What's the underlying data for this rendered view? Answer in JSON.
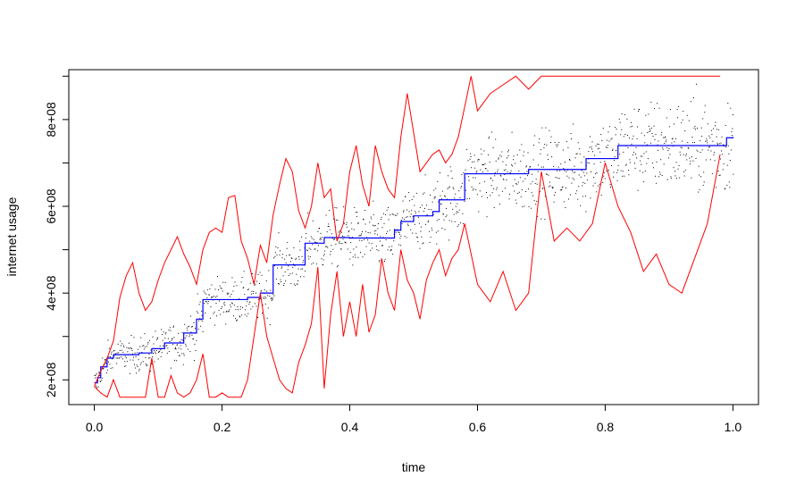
{
  "chart_data": {
    "type": "line",
    "title": "",
    "xlabel": "time",
    "ylabel": "internet usage",
    "xlim": [
      -0.04,
      1.04
    ],
    "ylim": [
      143000000,
      915000000
    ],
    "xticks": [
      0.0,
      0.2,
      0.4,
      0.6,
      0.8,
      1.0
    ],
    "xtick_labels": [
      "0.0",
      "0.2",
      "0.4",
      "0.6",
      "0.8",
      "1.0"
    ],
    "yticks": [
      200000000,
      300000000,
      400000000,
      500000000,
      600000000,
      700000000,
      800000000,
      900000000
    ],
    "ytick_labels": [
      "2e+08",
      "",
      "4e+08",
      "",
      "6e+08",
      "",
      "8e+08",
      ""
    ],
    "grid": false,
    "legend": "none",
    "colors": {
      "step": "#0000ff",
      "band": "#ff0000",
      "points": "#000000"
    },
    "series": [
      {
        "kind": "step",
        "x": [
          0.0,
          0.005,
          0.01,
          0.02,
          0.03,
          0.05,
          0.07,
          0.09,
          0.11,
          0.14,
          0.16,
          0.17,
          0.24,
          0.26,
          0.28,
          0.33,
          0.36,
          0.4,
          0.47,
          0.48,
          0.5,
          0.53,
          0.54,
          0.58,
          0.68,
          0.77,
          0.82,
          0.98,
          0.99,
          1.0
        ],
        "y": [
          193000000,
          205000000,
          230000000,
          250000000,
          258000000,
          258000000,
          262000000,
          272000000,
          285000000,
          308000000,
          340000000,
          385000000,
          390000000,
          400000000,
          465000000,
          515000000,
          528000000,
          527000000,
          545000000,
          565000000,
          578000000,
          588000000,
          615000000,
          675000000,
          685000000,
          710000000,
          740000000,
          740000000,
          758000000,
          760000000
        ]
      },
      {
        "kind": "band",
        "x": [
          0.0,
          0.01,
          0.02,
          0.03,
          0.04,
          0.05,
          0.06,
          0.07,
          0.08,
          0.09,
          0.1,
          0.11,
          0.12,
          0.13,
          0.14,
          0.15,
          0.16,
          0.17,
          0.18,
          0.19,
          0.2,
          0.21,
          0.22,
          0.23,
          0.24,
          0.25,
          0.26,
          0.27,
          0.28,
          0.29,
          0.3,
          0.31,
          0.32,
          0.33,
          0.34,
          0.35,
          0.36,
          0.37,
          0.38,
          0.39,
          0.4,
          0.41,
          0.42,
          0.43,
          0.44,
          0.45,
          0.46,
          0.47,
          0.48,
          0.49,
          0.5,
          0.51,
          0.52,
          0.53,
          0.54,
          0.55,
          0.56,
          0.57,
          0.58,
          0.59,
          0.6,
          0.62,
          0.64,
          0.66,
          0.68,
          0.7,
          0.72,
          0.74,
          0.76,
          0.78,
          0.8,
          0.82,
          0.84,
          0.86,
          0.9,
          0.95,
          0.98
        ],
        "y": [
          185000000,
          220000000,
          250000000,
          290000000,
          390000000,
          440000000,
          470000000,
          400000000,
          360000000,
          380000000,
          430000000,
          470000000,
          500000000,
          530000000,
          490000000,
          460000000,
          420000000,
          500000000,
          540000000,
          550000000,
          540000000,
          620000000,
          625000000,
          520000000,
          480000000,
          420000000,
          510000000,
          470000000,
          580000000,
          650000000,
          710000000,
          680000000,
          590000000,
          550000000,
          600000000,
          700000000,
          620000000,
          640000000,
          520000000,
          560000000,
          680000000,
          740000000,
          650000000,
          600000000,
          740000000,
          680000000,
          640000000,
          620000000,
          760000000,
          860000000,
          770000000,
          680000000,
          700000000,
          720000000,
          730000000,
          700000000,
          720000000,
          760000000,
          830000000,
          900000000,
          820000000,
          860000000,
          880000000,
          900000000,
          870000000,
          900000000,
          900000000,
          900000000,
          900000000,
          900000000,
          900000000,
          900000000,
          900000000,
          900000000,
          900000000,
          900000000,
          900000000
        ]
      },
      {
        "kind": "band",
        "x": [
          0.0,
          0.01,
          0.02,
          0.03,
          0.04,
          0.06,
          0.08,
          0.09,
          0.1,
          0.11,
          0.12,
          0.13,
          0.14,
          0.15,
          0.16,
          0.17,
          0.18,
          0.19,
          0.2,
          0.21,
          0.22,
          0.23,
          0.24,
          0.25,
          0.26,
          0.27,
          0.28,
          0.29,
          0.3,
          0.31,
          0.32,
          0.33,
          0.34,
          0.35,
          0.36,
          0.37,
          0.38,
          0.39,
          0.4,
          0.41,
          0.42,
          0.43,
          0.44,
          0.45,
          0.46,
          0.47,
          0.48,
          0.49,
          0.5,
          0.51,
          0.52,
          0.53,
          0.54,
          0.55,
          0.56,
          0.57,
          0.58,
          0.6,
          0.62,
          0.64,
          0.66,
          0.68,
          0.7,
          0.72,
          0.74,
          0.76,
          0.78,
          0.8,
          0.82,
          0.84,
          0.86,
          0.88,
          0.9,
          0.92,
          0.94,
          0.96,
          0.98
        ],
        "y": [
          185000000,
          170000000,
          160000000,
          200000000,
          160000000,
          160000000,
          160000000,
          250000000,
          160000000,
          160000000,
          210000000,
          170000000,
          160000000,
          170000000,
          200000000,
          260000000,
          160000000,
          160000000,
          170000000,
          160000000,
          160000000,
          160000000,
          200000000,
          300000000,
          400000000,
          300000000,
          250000000,
          200000000,
          180000000,
          170000000,
          240000000,
          280000000,
          330000000,
          460000000,
          180000000,
          350000000,
          450000000,
          300000000,
          380000000,
          300000000,
          420000000,
          310000000,
          350000000,
          480000000,
          400000000,
          360000000,
          500000000,
          430000000,
          400000000,
          340000000,
          430000000,
          470000000,
          500000000,
          440000000,
          480000000,
          500000000,
          560000000,
          420000000,
          380000000,
          450000000,
          360000000,
          400000000,
          680000000,
          520000000,
          550000000,
          520000000,
          560000000,
          700000000,
          600000000,
          540000000,
          450000000,
          490000000,
          420000000,
          400000000,
          480000000,
          560000000,
          720000000
        ]
      }
    ]
  }
}
